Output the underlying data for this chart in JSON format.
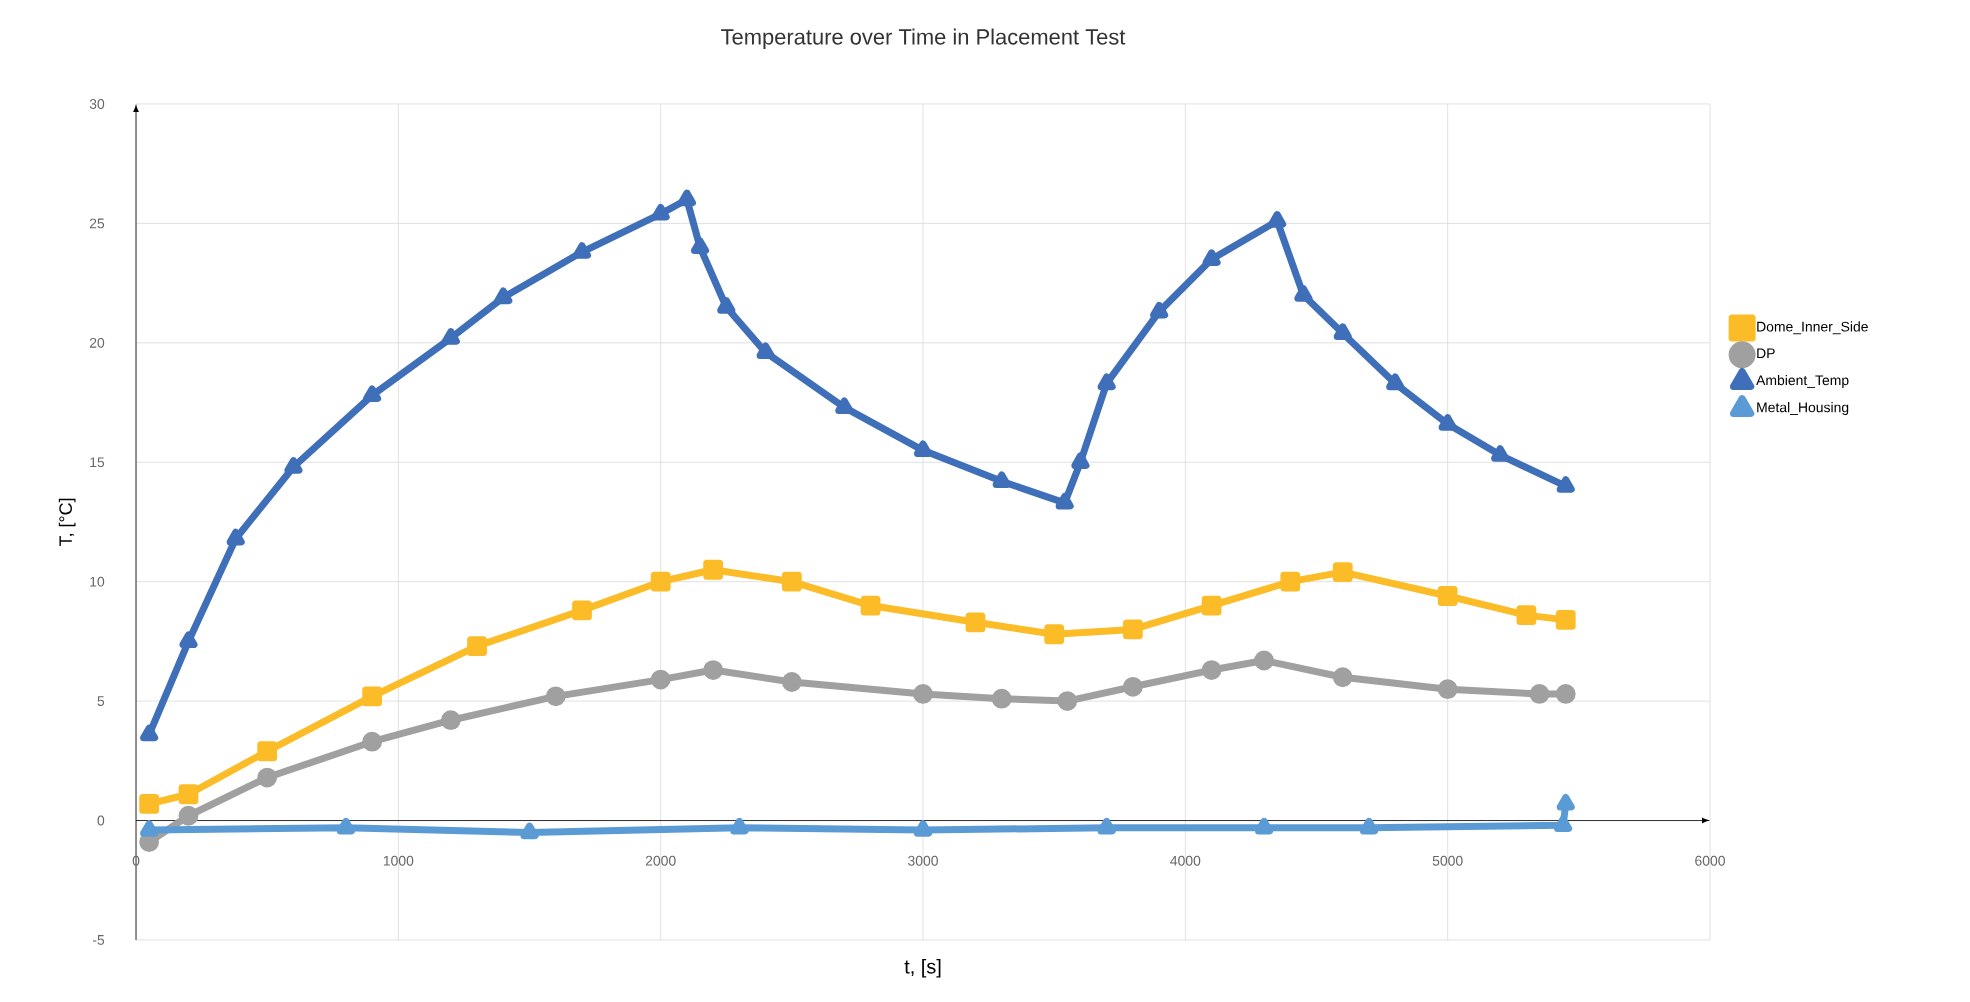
{
  "chart_data": {
    "type": "line",
    "title": "Temperature over Time in Placement Test",
    "xlabel": "t, [s]",
    "ylabel": "T, [°C]",
    "xlim": [
      0,
      6000
    ],
    "xticks": [
      0,
      1000,
      2000,
      3000,
      4000,
      5000,
      6000
    ],
    "ylim": [
      -5,
      30
    ],
    "yticks": [
      -5,
      0,
      5,
      10,
      15,
      20,
      25,
      30
    ],
    "grid": true,
    "legend": "right",
    "line_style": "solid",
    "series": [
      {
        "name": "Dome_Inner_Side",
        "color": "#fbbc28",
        "marker": "square",
        "x": [
          50,
          200,
          500,
          900,
          1300,
          1700,
          2000,
          2200,
          2500,
          2800,
          3200,
          3500,
          3800,
          4100,
          4400,
          4600,
          5000,
          5300,
          5450
        ],
        "values": [
          0.7,
          1.1,
          2.9,
          5.2,
          7.3,
          8.8,
          10,
          10.5,
          10,
          9.0,
          8.3,
          7.8,
          8.0,
          9.0,
          10.0,
          10.4,
          9.4,
          8.6,
          8.4
        ]
      },
      {
        "name": "DP",
        "color": "#a0a0a0",
        "marker": "circle",
        "x": [
          50,
          200,
          500,
          900,
          1200,
          1600,
          2000,
          2200,
          2500,
          3000,
          3300,
          3550,
          3800,
          4100,
          4300,
          4600,
          5000,
          5350,
          5450
        ],
        "values": [
          -0.9,
          0.2,
          1.8,
          3.3,
          4.2,
          5.2,
          5.9,
          6.3,
          5.8,
          5.3,
          5.1,
          5.0,
          5.6,
          6.3,
          6.7,
          6.0,
          5.5,
          5.3,
          5.3
        ]
      },
      {
        "name": "Ambient_Temp",
        "color": "#3e6fb8",
        "marker": "triangle",
        "x": [
          50,
          200,
          380,
          600,
          900,
          1200,
          1400,
          1700,
          2000,
          2100,
          2150,
          2250,
          2400,
          2700,
          3000,
          3300,
          3540,
          3600,
          3700,
          3900,
          4100,
          4350,
          4450,
          4600,
          4800,
          5000,
          5200,
          5450
        ],
        "values": [
          3.6,
          7.5,
          11.8,
          14.8,
          17.8,
          20.2,
          21.9,
          23.8,
          25.4,
          26,
          24,
          21.5,
          19.6,
          17.3,
          15.5,
          14.2,
          13.3,
          15,
          18.3,
          21.3,
          23.5,
          25.1,
          22,
          20.4,
          18.3,
          16.6,
          15.3,
          14
        ]
      },
      {
        "name": "Metal_Housing",
        "color": "#5b9bd5",
        "marker": "triangle",
        "x": [
          50,
          800,
          1500,
          2300,
          3000,
          3700,
          4300,
          4700,
          5440,
          5450
        ],
        "values": [
          -0.4,
          -0.3,
          -0.5,
          -0.3,
          -0.4,
          -0.3,
          -0.3,
          -0.3,
          -0.2,
          0.7
        ]
      }
    ]
  }
}
